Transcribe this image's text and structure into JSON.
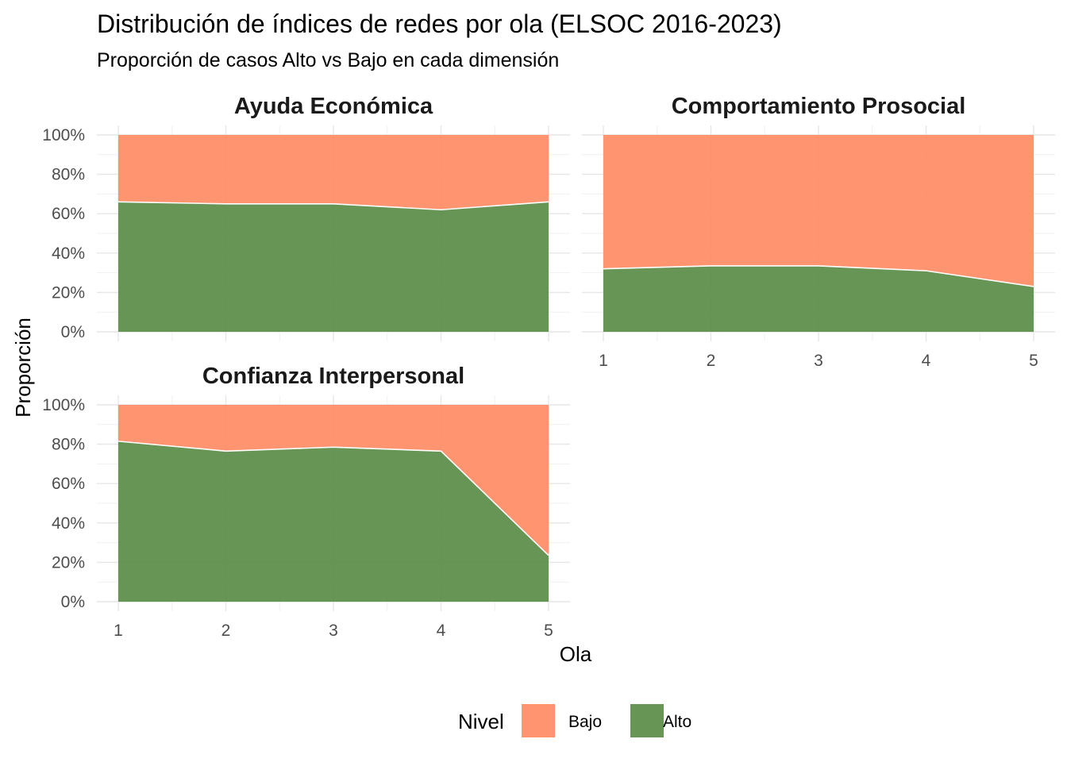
{
  "chart_data": {
    "type": "area",
    "title": "Distribución de índices de redes por ola (ELSOC 2016-2023)",
    "subtitle": "Proporción de casos Alto vs Bajo en cada dimensión",
    "xlabel": "Ola",
    "ylabel": "Proporción",
    "x": [
      1,
      2,
      3,
      4,
      5
    ],
    "x_ticks": [
      "1",
      "2",
      "3",
      "4",
      "5"
    ],
    "y_ticks": [
      "0%",
      "20%",
      "40%",
      "60%",
      "80%",
      "100%"
    ],
    "ylim": [
      0,
      1
    ],
    "grid": true,
    "stacked": true,
    "legend": {
      "title": "Nivel",
      "position": "bottom",
      "entries": [
        {
          "name": "Bajo",
          "color": "#FF8C64"
        },
        {
          "name": "Alto",
          "color": "#5A8C46"
        }
      ]
    },
    "panels": [
      {
        "title": "Ayuda Económica",
        "alto": [
          0.66,
          0.65,
          0.65,
          0.62,
          0.66
        ]
      },
      {
        "title": "Comportamiento Prosocial",
        "alto": [
          0.32,
          0.335,
          0.335,
          0.31,
          0.23
        ]
      },
      {
        "title": "Confianza Interpersonal",
        "alto": [
          0.815,
          0.765,
          0.785,
          0.765,
          0.235
        ]
      }
    ]
  }
}
